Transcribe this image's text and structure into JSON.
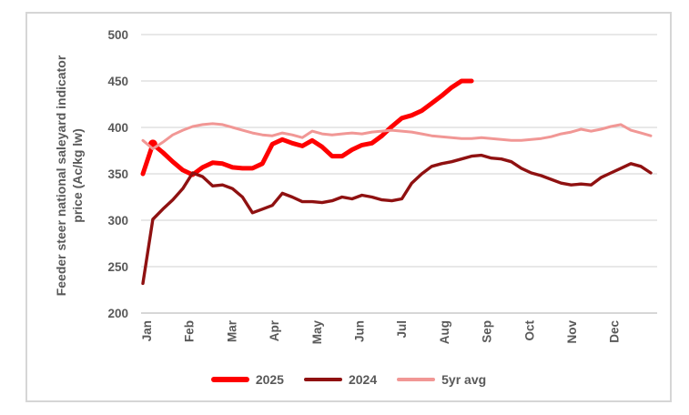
{
  "chart_data": {
    "type": "line",
    "ylabel_line1": "Feeder steer national saleyard indicator",
    "ylabel_line2": "price (Ac/kg lw)",
    "categories": [
      "Jan",
      "Feb",
      "Mar",
      "Apr",
      "May",
      "Jun",
      "Jul",
      "Aug",
      "Sep",
      "Oct",
      "Nov",
      "Dec"
    ],
    "y_ticks": [
      200,
      250,
      300,
      350,
      400,
      450,
      500
    ],
    "ylim": [
      200,
      500
    ],
    "x_unit": "weekly points, Jan through Dec (52 weeks)",
    "grid": true,
    "legend_position": "bottom",
    "colors": {
      "axis_text": "#595959",
      "gridline": "#d9d9d9",
      "axis_line": "#bfbfbf",
      "frame_border": "#d6d6d6"
    },
    "series": [
      {
        "name": "2025",
        "color": "#fe0000",
        "width": 5,
        "marker_index": 1,
        "values": [
          350,
          382,
          373,
          363,
          354,
          349,
          357,
          362,
          361,
          357,
          356,
          356,
          361,
          382,
          387,
          383,
          380,
          386,
          379,
          369,
          369,
          376,
          381,
          383,
          391,
          401,
          410,
          413,
          418,
          426,
          434,
          443,
          450,
          450
        ]
      },
      {
        "name": "2024",
        "color": "#8f1111",
        "width": 3.4,
        "values": [
          232,
          301,
          312,
          322,
          334,
          351,
          347,
          337,
          338,
          334,
          325,
          308,
          312,
          316,
          329,
          325,
          320,
          320,
          319,
          321,
          325,
          323,
          327,
          325,
          322,
          321,
          323,
          340,
          350,
          358,
          361,
          363,
          366,
          369,
          370,
          367,
          366,
          363,
          356,
          351,
          348,
          344,
          340,
          338,
          339,
          338,
          346,
          351,
          356,
          361,
          358,
          351
        ]
      },
      {
        "name": "5yr avg",
        "color": "#f19795",
        "width": 3,
        "values": [
          386,
          377,
          384,
          392,
          397,
          401,
          403,
          404,
          403,
          400,
          397,
          394,
          392,
          391,
          394,
          392,
          389,
          396,
          393,
          392,
          393,
          394,
          393,
          395,
          396,
          397,
          396,
          395,
          393,
          391,
          390,
          389,
          388,
          388,
          389,
          388,
          387,
          386,
          386,
          387,
          388,
          390,
          393,
          395,
          398,
          396,
          398,
          401,
          403,
          397,
          394,
          391
        ]
      }
    ]
  }
}
